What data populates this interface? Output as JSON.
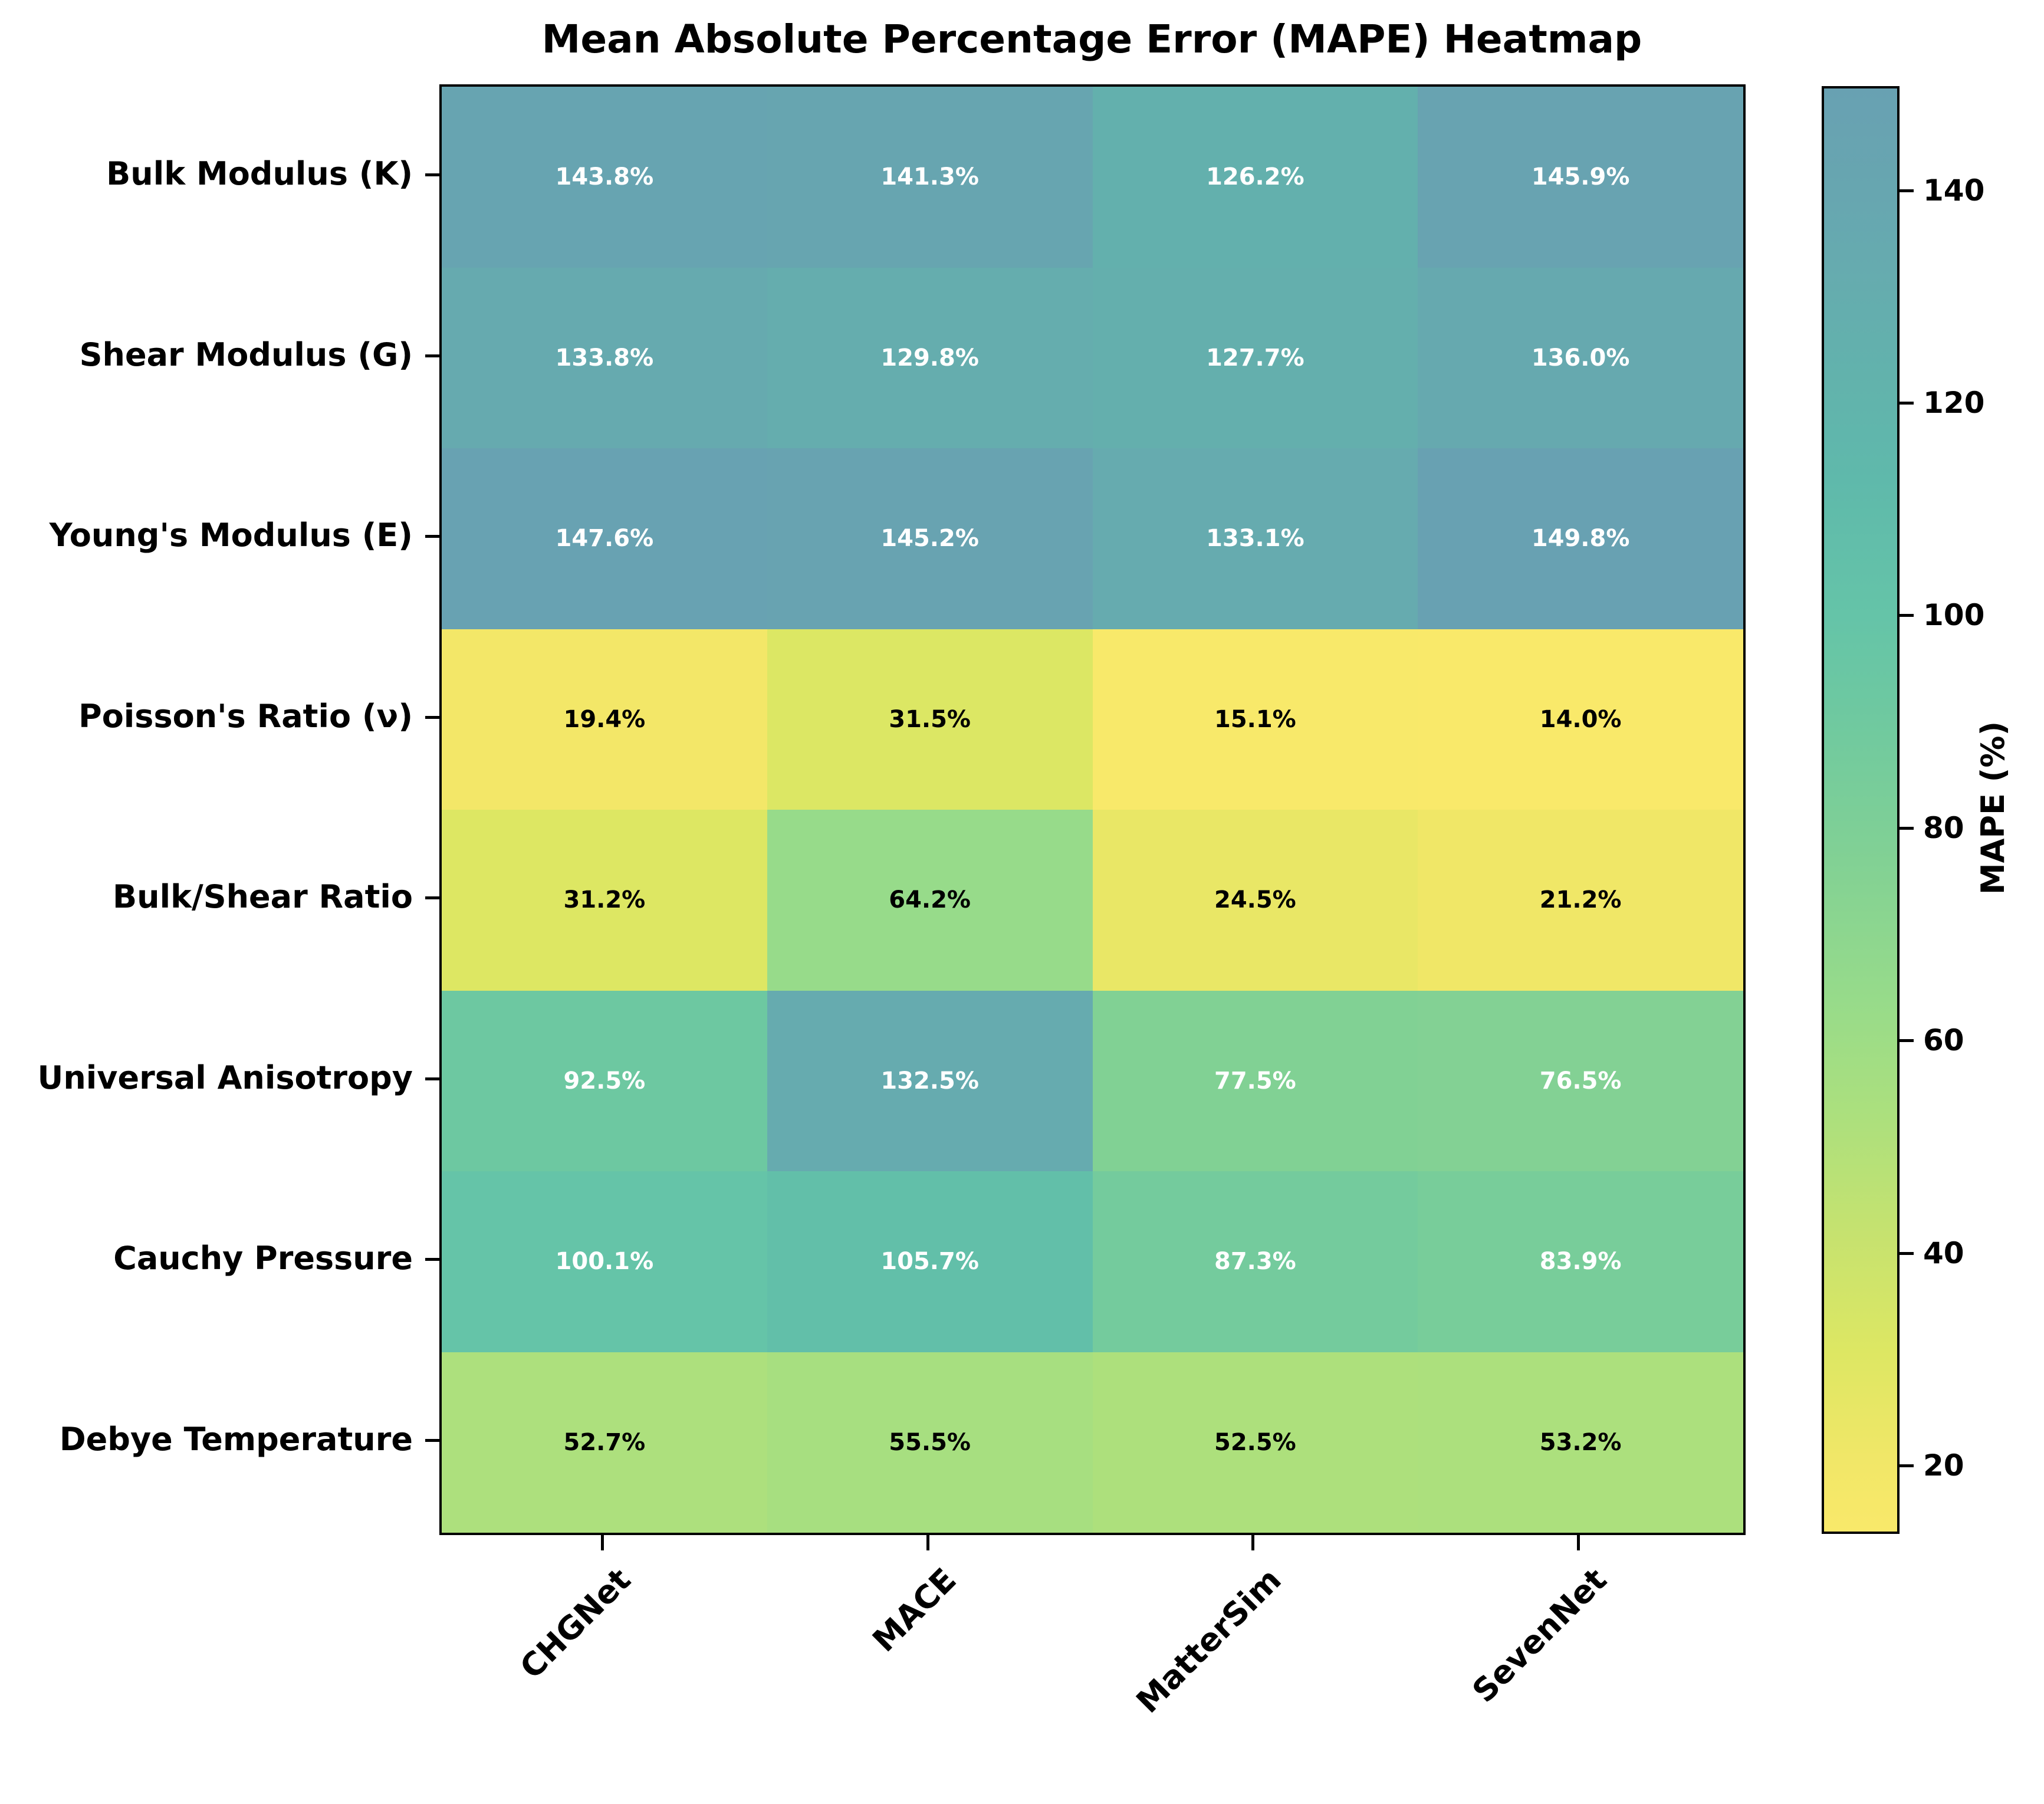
{
  "title": "Mean Absolute Percentage Error (MAPE) Heatmap",
  "chart_data": {
    "type": "heatmap",
    "title": "Mean Absolute Percentage Error (MAPE) Heatmap",
    "columns": [
      "CHGNet",
      "MACE",
      "MatterSim",
      "SevenNet"
    ],
    "rows": [
      "Bulk Modulus (K)",
      "Shear Modulus (G)",
      "Young's Modulus (E)",
      "Poisson's Ratio (ν)",
      "Bulk/Shear Ratio",
      "Universal Anisotropy",
      "Cauchy Pressure",
      "Debye Temperature"
    ],
    "values": [
      [
        143.8,
        141.3,
        126.2,
        145.9
      ],
      [
        133.8,
        129.8,
        127.7,
        136.0
      ],
      [
        147.6,
        145.2,
        133.1,
        149.8
      ],
      [
        19.4,
        31.5,
        15.1,
        14.0
      ],
      [
        31.2,
        64.2,
        24.5,
        21.2
      ],
      [
        92.5,
        132.5,
        77.5,
        76.5
      ],
      [
        100.1,
        105.7,
        87.3,
        83.9
      ],
      [
        52.7,
        55.5,
        52.5,
        53.2
      ]
    ],
    "value_suffix": "%",
    "value_decimals": 1,
    "grid": false,
    "legend_position": "right-colorbar",
    "colorbar": {
      "label": "MAPE (%)",
      "ticks": [
        20,
        40,
        60,
        80,
        100,
        120,
        140
      ],
      "vmin": 14.0,
      "vmax": 149.8
    },
    "colorscale": [
      {
        "v": 14,
        "color": "#f9e96a"
      },
      {
        "v": 20,
        "color": "#f2e768"
      },
      {
        "v": 31,
        "color": "#dde763"
      },
      {
        "v": 42,
        "color": "#c6e26f"
      },
      {
        "v": 53,
        "color": "#ace07d"
      },
      {
        "v": 64,
        "color": "#97db8a"
      },
      {
        "v": 77,
        "color": "#82d194"
      },
      {
        "v": 92,
        "color": "#6dc8a1"
      },
      {
        "v": 100,
        "color": "#65c4a8"
      },
      {
        "v": 113,
        "color": "#5fb9ab"
      },
      {
        "v": 126,
        "color": "#63b0ad"
      },
      {
        "v": 133,
        "color": "#66abaf"
      },
      {
        "v": 140,
        "color": "#67a6b0"
      },
      {
        "v": 150,
        "color": "#68a1b2"
      }
    ],
    "annotation_text_colors": {
      "light_cells": "#000000",
      "dark_cells": "#ffffff"
    },
    "text_color_threshold": 70
  }
}
